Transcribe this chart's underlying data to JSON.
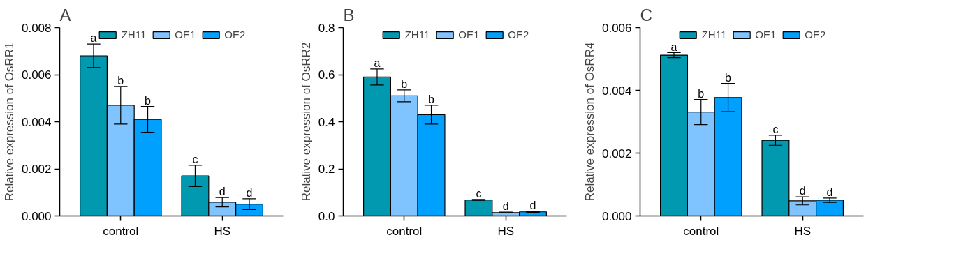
{
  "chart_data": [
    {
      "type": "bar",
      "title": "A",
      "ylabel": "Relative expression of OsRR1",
      "categories": [
        "control",
        "HS"
      ],
      "ylim": [
        0,
        0.008
      ],
      "yticks": [
        {
          "value": 0,
          "label": "0.000"
        },
        {
          "value": 0.002,
          "label": "0.002"
        },
        {
          "value": 0.004,
          "label": "0.004"
        },
        {
          "value": 0.006,
          "label": "0.006"
        },
        {
          "value": 0.008,
          "label": "0.008"
        }
      ],
      "grid": false,
      "legend": "top",
      "series": [
        {
          "name": "ZH11",
          "color": "#0099b0",
          "values": [
            0.0068,
            0.0017
          ],
          "errors": [
            0.0005,
            0.00045
          ],
          "value_labels": [
            "a",
            "c"
          ]
        },
        {
          "name": "OE1",
          "color": "#80c4ff",
          "values": [
            0.0047,
            0.00058
          ],
          "errors": [
            0.0008,
            0.0002
          ],
          "value_labels": [
            "b",
            "d"
          ]
        },
        {
          "name": "OE2",
          "color": "#00a0ff",
          "values": [
            0.0041,
            0.0005
          ],
          "errors": [
            0.00055,
            0.00023
          ],
          "value_labels": [
            "b",
            "d"
          ]
        }
      ]
    },
    {
      "type": "bar",
      "title": "B",
      "ylabel": "Relative expression of OsRR2",
      "categories": [
        "control",
        "HS"
      ],
      "ylim": [
        0,
        0.8
      ],
      "yticks": [
        {
          "value": 0,
          "label": "0.0"
        },
        {
          "value": 0.2,
          "label": "0.2"
        },
        {
          "value": 0.4,
          "label": "0.4"
        },
        {
          "value": 0.6,
          "label": "0.6"
        },
        {
          "value": 0.8,
          "label": "0.8"
        }
      ],
      "grid": false,
      "legend": "top",
      "series": [
        {
          "name": "ZH11",
          "color": "#0099b0",
          "values": [
            0.59,
            0.068
          ],
          "errors": [
            0.034,
            0.002
          ],
          "value_labels": [
            "a",
            "c"
          ]
        },
        {
          "name": "OE1",
          "color": "#80c4ff",
          "values": [
            0.51,
            0.014
          ],
          "errors": [
            0.025,
            0.002
          ],
          "value_labels": [
            "b",
            "d"
          ]
        },
        {
          "name": "OE2",
          "color": "#00a0ff",
          "values": [
            0.43,
            0.017
          ],
          "errors": [
            0.04,
            0.002
          ],
          "value_labels": [
            "b",
            "d"
          ]
        }
      ]
    },
    {
      "type": "bar",
      "title": "C",
      "ylabel": "Relative expression of OsRR4",
      "categories": [
        "control",
        "HS"
      ],
      "ylim": [
        0,
        0.006
      ],
      "yticks": [
        {
          "value": 0,
          "label": "0.000"
        },
        {
          "value": 0.002,
          "label": "0.002"
        },
        {
          "value": 0.004,
          "label": "0.004"
        },
        {
          "value": 0.006,
          "label": "0.006"
        }
      ],
      "grid": false,
      "legend": "top",
      "series": [
        {
          "name": "ZH11",
          "color": "#0099b0",
          "values": [
            0.00512,
            0.00241
          ],
          "errors": [
            8e-05,
            0.00016
          ],
          "value_labels": [
            "a",
            "c"
          ]
        },
        {
          "name": "OE1",
          "color": "#80c4ff",
          "values": [
            0.00331,
            0.00048
          ],
          "errors": [
            0.0004,
            0.00013
          ],
          "value_labels": [
            "b",
            "d"
          ]
        },
        {
          "name": "OE2",
          "color": "#00a0ff",
          "values": [
            0.00377,
            0.0005
          ],
          "errors": [
            0.00045,
            7e-05
          ],
          "value_labels": [
            "b",
            "d"
          ]
        }
      ]
    }
  ]
}
